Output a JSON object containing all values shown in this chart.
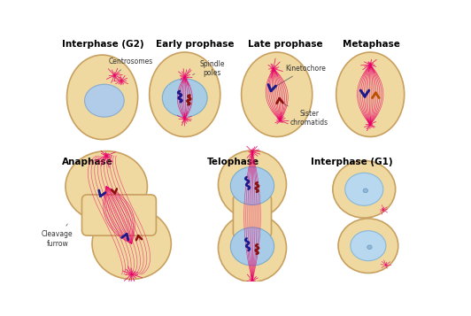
{
  "background_color": "#ffffff",
  "cell_fill": "#f0d9a0",
  "cell_edge": "#c8a060",
  "nucleus_fill": "#a8c8e8",
  "nucleus_edge": "#7090b8",
  "spindle_color": "#e8006a",
  "chr_blue": "#1a1a8c",
  "chr_red": "#8b1010",
  "chr_orange": "#b85000",
  "title_color": "#000000",
  "annot_color": "#333333",
  "row1_titles": [
    "Interphase (G2)",
    "Early prophase",
    "Late prophase",
    "Metaphase"
  ],
  "row2_titles": [
    "Anaphase",
    "Telophase",
    "Interphase (G1)"
  ]
}
